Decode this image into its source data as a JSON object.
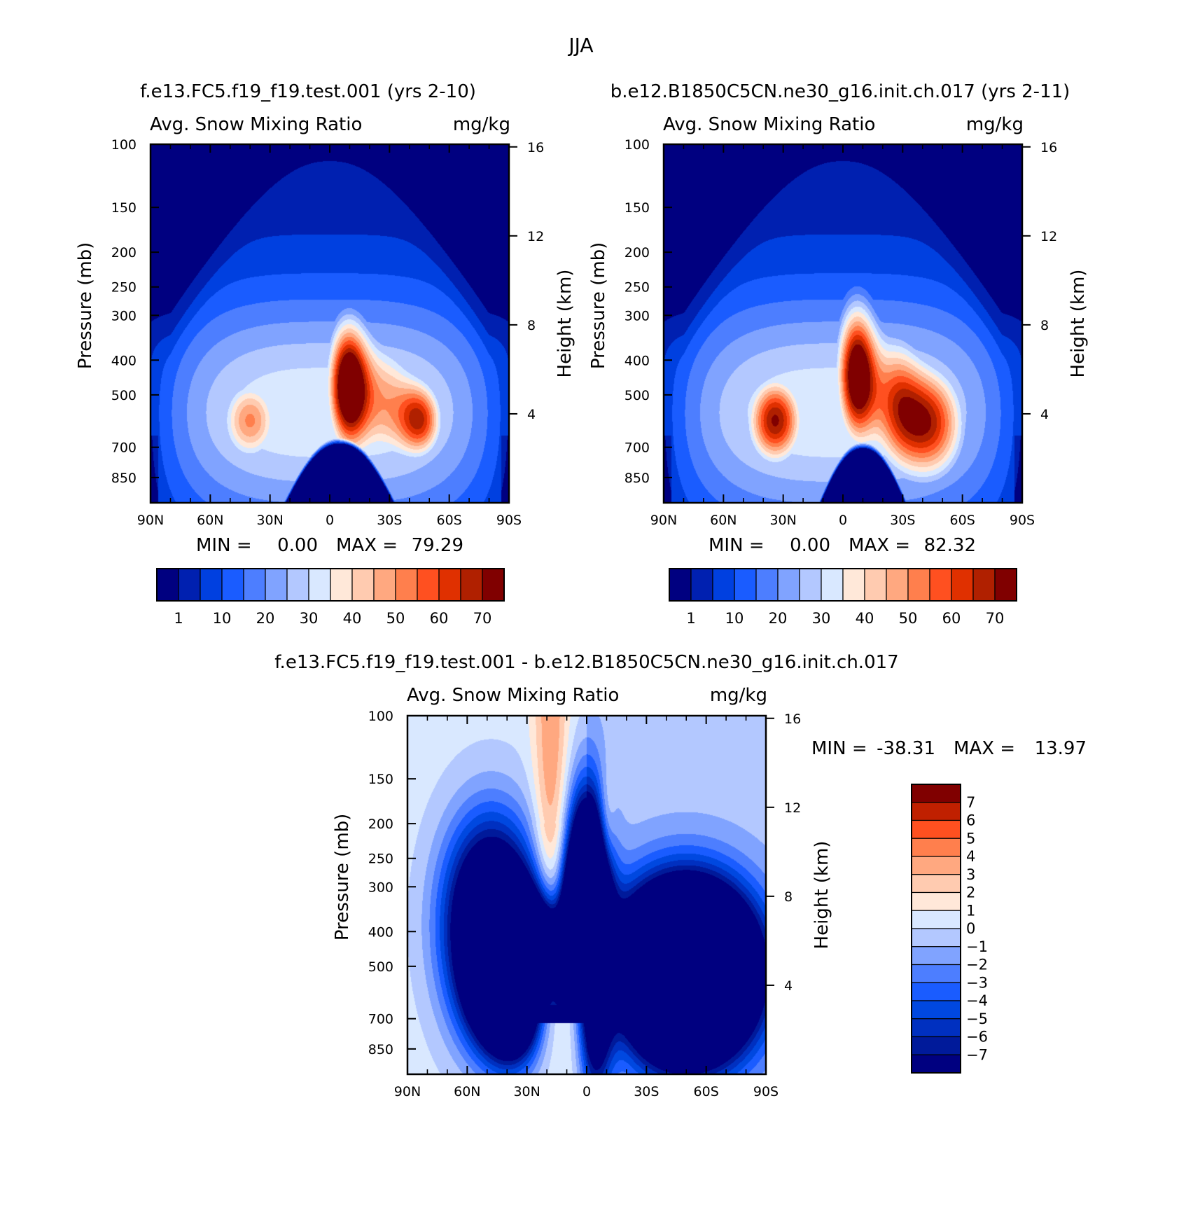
{
  "chart_data": {
    "title": "JJA",
    "panels": [
      {
        "id": "p1",
        "type": "heatmap",
        "case_title": "f.e13.FC5.f19_f19.test.001 (yrs 2-10)",
        "variable": "Avg. Snow Mixing Ratio",
        "units": "mg/kg",
        "ylabel": "Pressure (mb)",
        "y2label": "Height (km)",
        "x_ticks": [
          "90N",
          "60N",
          "30N",
          "0",
          "30S",
          "60S",
          "90S"
        ],
        "p_ticks": [
          100,
          150,
          200,
          250,
          300,
          400,
          500,
          700,
          850
        ],
        "h_ticks": [
          16,
          12,
          8,
          4
        ],
        "min_label": "MIN =",
        "min_value": "0.00",
        "max_label": "MAX =",
        "max_value": "79.29",
        "colorbar_labels": [
          "1",
          "10",
          "20",
          "30",
          "40",
          "50",
          "60",
          "70"
        ],
        "features": [
          {
            "lat": -9,
            "p": 470,
            "amp": 80,
            "slat": 7,
            "sp": 0.28
          },
          {
            "lat": -27,
            "p": 520,
            "amp": 44,
            "slat": 12,
            "sp": 0.3
          },
          {
            "lat": -46,
            "p": 590,
            "amp": 55,
            "slat": 8,
            "sp": 0.17
          },
          {
            "lat": 40,
            "p": 590,
            "amp": 50,
            "slat": 11,
            "sp": 0.2
          }
        ],
        "tropopause": {
          "pmin": 108,
          "pmax": 340,
          "halfwidth": 34,
          "pole_offset": 0
        },
        "surface": {
          "center": -5,
          "halfwidth": 28,
          "ptop": 660
        },
        "level_shift": 0
      },
      {
        "id": "p2",
        "type": "heatmap",
        "case_title": "b.e12.B1850C5CN.ne30_g16.init.ch.017 (yrs 2-11)",
        "variable": "Avg. Snow Mixing Ratio",
        "units": "mg/kg",
        "ylabel": "Pressure (mb)",
        "y2label": "Height (km)",
        "x_ticks": [
          "90N",
          "60N",
          "30N",
          "0",
          "30S",
          "60S",
          "90S"
        ],
        "p_ticks": [
          100,
          150,
          200,
          250,
          300,
          400,
          500,
          700,
          850
        ],
        "h_ticks": [
          16,
          12,
          8,
          4
        ],
        "min_label": "MIN =",
        "min_value": "0.00",
        "max_label": "MAX =",
        "max_value": "82.32",
        "colorbar_labels": [
          "1",
          "10",
          "20",
          "30",
          "40",
          "50",
          "60",
          "70"
        ],
        "features": [
          {
            "lat": -7,
            "p": 440,
            "amp": 82,
            "slat": 7,
            "sp": 0.3
          },
          {
            "lat": -43,
            "p": 600,
            "amp": 65,
            "slat": 13,
            "sp": 0.26
          },
          {
            "lat": -26,
            "p": 500,
            "amp": 40,
            "slat": 9,
            "sp": 0.3
          },
          {
            "lat": 34,
            "p": 590,
            "amp": 70,
            "slat": 10,
            "sp": 0.2
          }
        ],
        "tropopause": {
          "pmin": 108,
          "pmax": 340,
          "halfwidth": 34,
          "pole_offset": 0
        },
        "surface": {
          "center": -10,
          "halfwidth": 22,
          "ptop": 680
        },
        "level_shift": 0
      },
      {
        "id": "p3",
        "type": "heatmap",
        "case_title": "f.e13.FC5.f19_f19.test.001 - b.e12.B1850C5CN.ne30_g16.init.ch.017",
        "variable": "Avg. Snow Mixing Ratio",
        "units": "mg/kg",
        "ylabel": "Pressure (mb)",
        "y2label": "Height (km)",
        "x_ticks": [
          "90N",
          "60N",
          "30N",
          "0",
          "30S",
          "60S",
          "90S"
        ],
        "p_ticks": [
          100,
          150,
          200,
          250,
          300,
          400,
          500,
          700,
          850
        ],
        "h_ticks": [
          16,
          12,
          8,
          4
        ],
        "min_label": "MIN =",
        "min_value": "-38.31",
        "max_label": "MAX =",
        "max_value": "13.97",
        "colorbar_labels": [
          "7",
          "6",
          "5",
          "4",
          "3",
          "2",
          "1",
          "0",
          "-1",
          "-2",
          "-3",
          "-4",
          "-5",
          "-6",
          "-7"
        ]
      }
    ]
  }
}
